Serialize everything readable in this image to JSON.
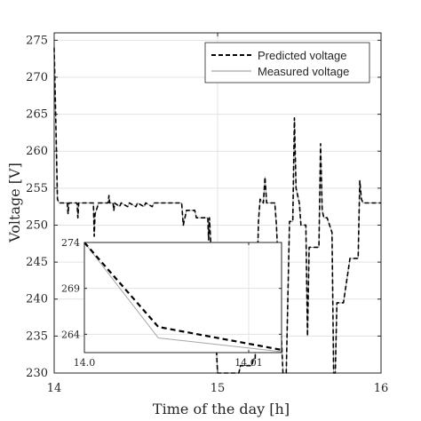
{
  "chart_data": [
    {
      "type": "line",
      "xlabel": "Time of the day [h]",
      "ylabel": "Voltage [V]",
      "xlim": [
        14,
        16
      ],
      "ylim": [
        230,
        276
      ],
      "xticks": [
        14,
        15,
        16
      ],
      "xtick_labels": [
        "14",
        "15",
        "16"
      ],
      "yticks": [
        230,
        235,
        240,
        245,
        250,
        255,
        260,
        265,
        270,
        275
      ],
      "ytick_labels": [
        "230",
        "235",
        "240",
        "245",
        "250",
        "255",
        "260",
        "265",
        "270",
        "275"
      ],
      "grid": true,
      "legend": "top-right",
      "series": [
        {
          "name": "Predicted voltage",
          "style": "dashed",
          "color": "#000000",
          "x": [
            14.0,
            14.01,
            14.02,
            14.03,
            14.04,
            14.06,
            14.08,
            14.085,
            14.09,
            14.14,
            14.145,
            14.15,
            14.24,
            14.245,
            14.25,
            14.265,
            14.27,
            14.33,
            14.335,
            14.34,
            14.36,
            14.365,
            14.37,
            14.4,
            14.41,
            14.45,
            14.46,
            14.5,
            14.51,
            14.55,
            14.56,
            14.6,
            14.61,
            14.7,
            14.75,
            14.78,
            14.79,
            14.81,
            14.82,
            14.86,
            14.87,
            14.94,
            14.945,
            14.95,
            15.0,
            15.01,
            15.05,
            15.06,
            15.1,
            15.11,
            15.11,
            15.12,
            15.13,
            15.14,
            15.2,
            15.21,
            15.22,
            15.23,
            15.25,
            15.26,
            15.28,
            15.29,
            15.3,
            15.35,
            15.36,
            15.4,
            15.41,
            15.42,
            15.44,
            15.46,
            15.47,
            15.48,
            15.5,
            15.51,
            15.54,
            15.55,
            15.56,
            15.57,
            15.61,
            15.62,
            15.63,
            15.64,
            15.65,
            15.66,
            15.67,
            15.7,
            15.71,
            15.72,
            15.73,
            15.74,
            15.76,
            15.77,
            15.81,
            15.82,
            15.83,
            15.86,
            15.87,
            15.88,
            15.89,
            15.9,
            15.92,
            15.93,
            15.96,
            16.0
          ],
          "y": [
            274,
            264,
            253.5,
            253,
            253,
            253,
            253,
            251.5,
            253,
            253,
            251,
            253,
            253,
            248.5,
            251.5,
            252.5,
            253,
            253,
            254,
            253,
            253,
            252,
            253,
            252.5,
            253,
            252.5,
            253,
            252.5,
            253,
            252.5,
            253,
            252.5,
            253,
            253,
            253,
            253,
            250,
            252,
            252,
            252,
            251,
            251,
            248,
            251,
            230,
            230,
            230,
            230,
            230,
            230,
            230,
            230,
            230,
            231,
            231,
            231,
            232,
            232,
            250.5,
            253.5,
            253,
            256.5,
            253,
            253,
            250,
            230,
            230,
            230,
            250.5,
            250.5,
            264.5,
            255,
            253,
            250,
            250,
            235,
            247,
            247,
            247,
            247,
            261,
            252,
            251,
            251,
            251,
            249,
            230,
            230,
            239.5,
            239.5,
            239.5,
            239.5,
            245.5,
            245.5,
            245.5,
            245.5,
            256,
            253.5,
            253,
            253,
            253,
            253,
            253,
            253
          ]
        },
        {
          "name": "Measured voltage",
          "style": "solid",
          "color": "#a6a6a6",
          "x": [
            14.0,
            14.01,
            14.02,
            14.03,
            14.04,
            14.06,
            14.08,
            14.085,
            14.09,
            14.14,
            14.145,
            14.15,
            14.24,
            14.245,
            14.25,
            14.265,
            14.27,
            14.33,
            14.335,
            14.34,
            14.36,
            14.365,
            14.37,
            14.4,
            14.41,
            14.45,
            14.46,
            14.5,
            14.51,
            14.55,
            14.56,
            14.6,
            14.61,
            14.7,
            14.75,
            14.78,
            14.79,
            14.81,
            14.82,
            14.86,
            14.87,
            14.94,
            14.945,
            14.95,
            15.0,
            15.01,
            15.05,
            15.06,
            15.1,
            15.11,
            15.11,
            15.12,
            15.13,
            15.14,
            15.2,
            15.21,
            15.22,
            15.23,
            15.25,
            15.26,
            15.28,
            15.29,
            15.3,
            15.35,
            15.36,
            15.4,
            15.41,
            15.42,
            15.44,
            15.46,
            15.47,
            15.48,
            15.5,
            15.51,
            15.54,
            15.55,
            15.56,
            15.57,
            15.61,
            15.62,
            15.63,
            15.64,
            15.65,
            15.66,
            15.67,
            15.7,
            15.71,
            15.72,
            15.73,
            15.74,
            15.76,
            15.77,
            15.81,
            15.82,
            15.83,
            15.86,
            15.87,
            15.88,
            15.89,
            15.9,
            15.92,
            15.93,
            15.96,
            16.0
          ],
          "y": [
            274,
            264,
            253.5,
            253,
            253,
            253,
            253,
            251.5,
            253,
            253,
            251,
            253,
            253,
            248.5,
            251.5,
            252.5,
            253,
            253,
            254,
            253,
            253,
            252,
            253,
            252.5,
            253,
            252.5,
            253,
            252.5,
            253,
            252.5,
            253,
            252.5,
            253,
            253,
            253,
            253,
            250,
            252,
            252,
            252,
            251,
            251,
            248,
            251,
            230,
            230,
            230,
            230,
            230,
            230,
            230,
            230,
            230,
            231,
            231,
            231,
            232,
            232,
            250.5,
            253.5,
            253,
            256.5,
            253,
            253,
            250,
            230,
            230,
            230,
            250.5,
            250.5,
            264.5,
            255,
            253,
            250,
            250,
            235,
            247,
            247,
            247,
            247,
            261,
            252,
            251,
            251,
            251,
            249,
            230,
            230,
            239.5,
            239.5,
            239.5,
            239.5,
            245.5,
            245.5,
            245.5,
            245.5,
            256,
            253.5,
            253,
            253,
            253,
            253,
            253,
            253
          ]
        }
      ]
    },
    {
      "type": "line",
      "xlim": [
        14.0,
        14.012
      ],
      "ylim": [
        262,
        274
      ],
      "xticks": [
        14.0,
        14.01
      ],
      "xtick_labels": [
        "14.0",
        "14.01"
      ],
      "yticks": [
        264,
        269,
        274
      ],
      "ytick_labels": [
        "264",
        "269",
        "274"
      ],
      "grid": true,
      "series": [
        {
          "name": "Predicted voltage",
          "style": "dashed",
          "color": "#000000",
          "x": [
            14.0,
            14.0045,
            14.012
          ],
          "y": [
            274,
            264.8,
            262.3
          ]
        },
        {
          "name": "Measured voltage",
          "style": "solid",
          "color": "#a6a6a6",
          "x": [
            14.0,
            14.0045,
            14.012
          ],
          "y": [
            274,
            263.6,
            262.1
          ]
        }
      ]
    }
  ]
}
